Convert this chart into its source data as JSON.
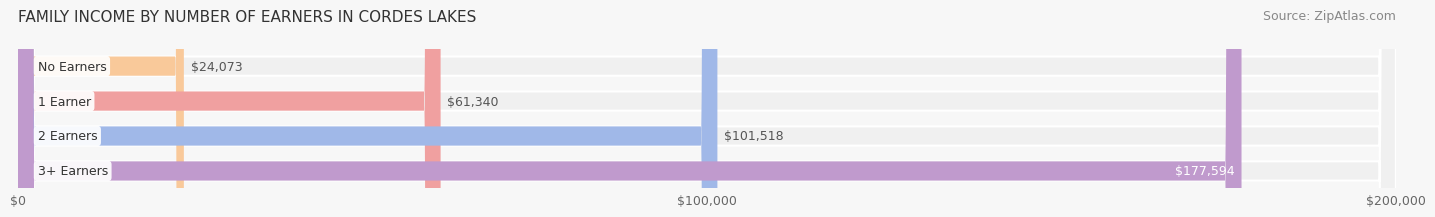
{
  "title": "FAMILY INCOME BY NUMBER OF EARNERS IN CORDES LAKES",
  "source": "Source: ZipAtlas.com",
  "categories": [
    "No Earners",
    "1 Earner",
    "2 Earners",
    "3+ Earners"
  ],
  "values": [
    24073,
    61340,
    101518,
    177594
  ],
  "labels": [
    "$24,073",
    "$61,340",
    "$101,518",
    "$177,594"
  ],
  "bar_colors": [
    "#f9c99a",
    "#f0a0a0",
    "#a0b8e8",
    "#c09acd"
  ],
  "bar_bg_color": "#f0f0f0",
  "label_colors": [
    "#555555",
    "#555555",
    "#555555",
    "#ffffff"
  ],
  "xmax": 200000,
  "xticks": [
    0,
    100000,
    200000
  ],
  "xtick_labels": [
    "$0",
    "$100,000",
    "$200,000"
  ],
  "background_color": "#f7f7f7",
  "title_fontsize": 11,
  "source_fontsize": 9,
  "tick_fontsize": 9,
  "bar_label_fontsize": 9,
  "category_fontsize": 9
}
